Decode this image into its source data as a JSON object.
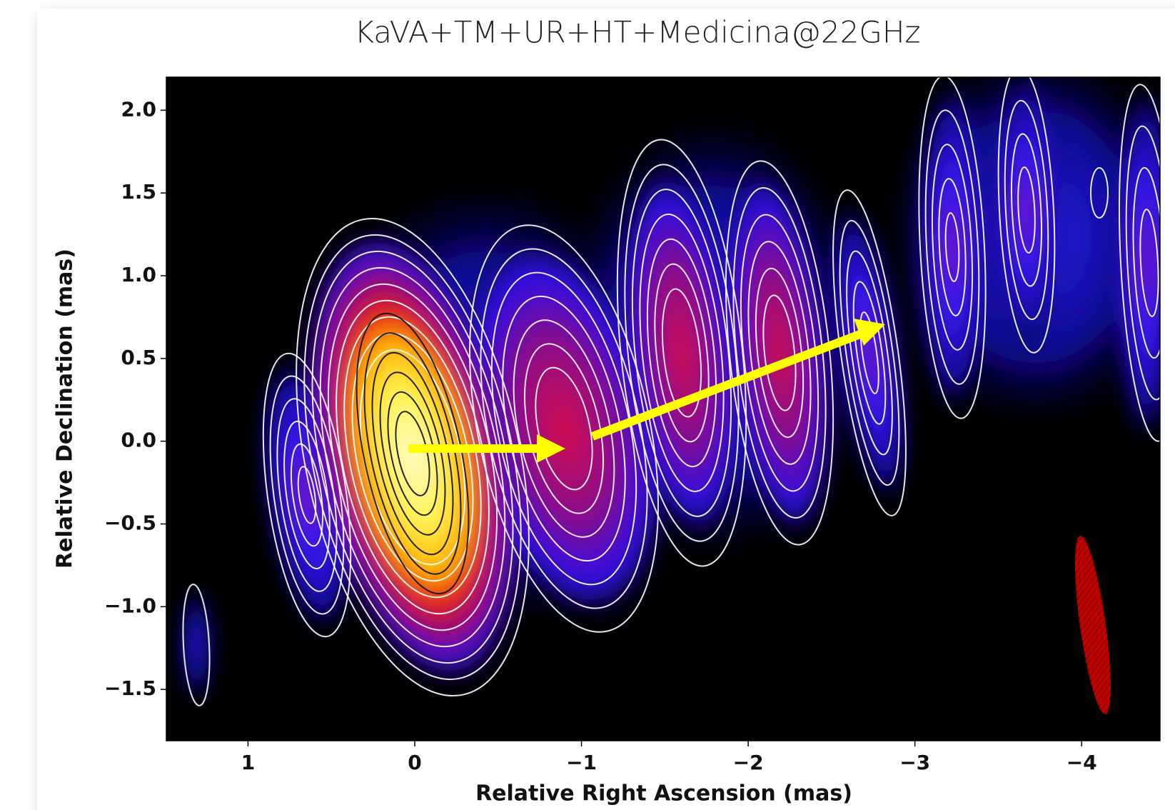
{
  "chart_data": {
    "type": "image",
    "title": "KaVA+TM+UR+HT+Medicina@22GHz",
    "xlabel": "Relative Right Ascension (mas)",
    "ylabel": "Relative Declination (mas)",
    "xlim": [
      1.49,
      -4.47
    ],
    "ylim": [
      -1.81,
      2.2
    ],
    "xticks": [
      1,
      0,
      {
        "value": -1,
        "label": "−1"
      },
      {
        "value": -2,
        "label": "−2"
      },
      {
        "value": -3,
        "label": "−3"
      },
      {
        "value": -4,
        "label": "−4"
      }
    ],
    "yticks": [
      {
        "value": -1.5,
        "label": "−1.5"
      },
      {
        "value": -1,
        "label": "−1.0"
      },
      {
        "value": -0.5,
        "label": "−0.5"
      },
      {
        "value": 0,
        "label": "0.0"
      },
      0.5,
      {
        "value": 1,
        "label": "1.0"
      },
      1.5,
      {
        "value": 2,
        "label": "2.0"
      }
    ]
  }
}
